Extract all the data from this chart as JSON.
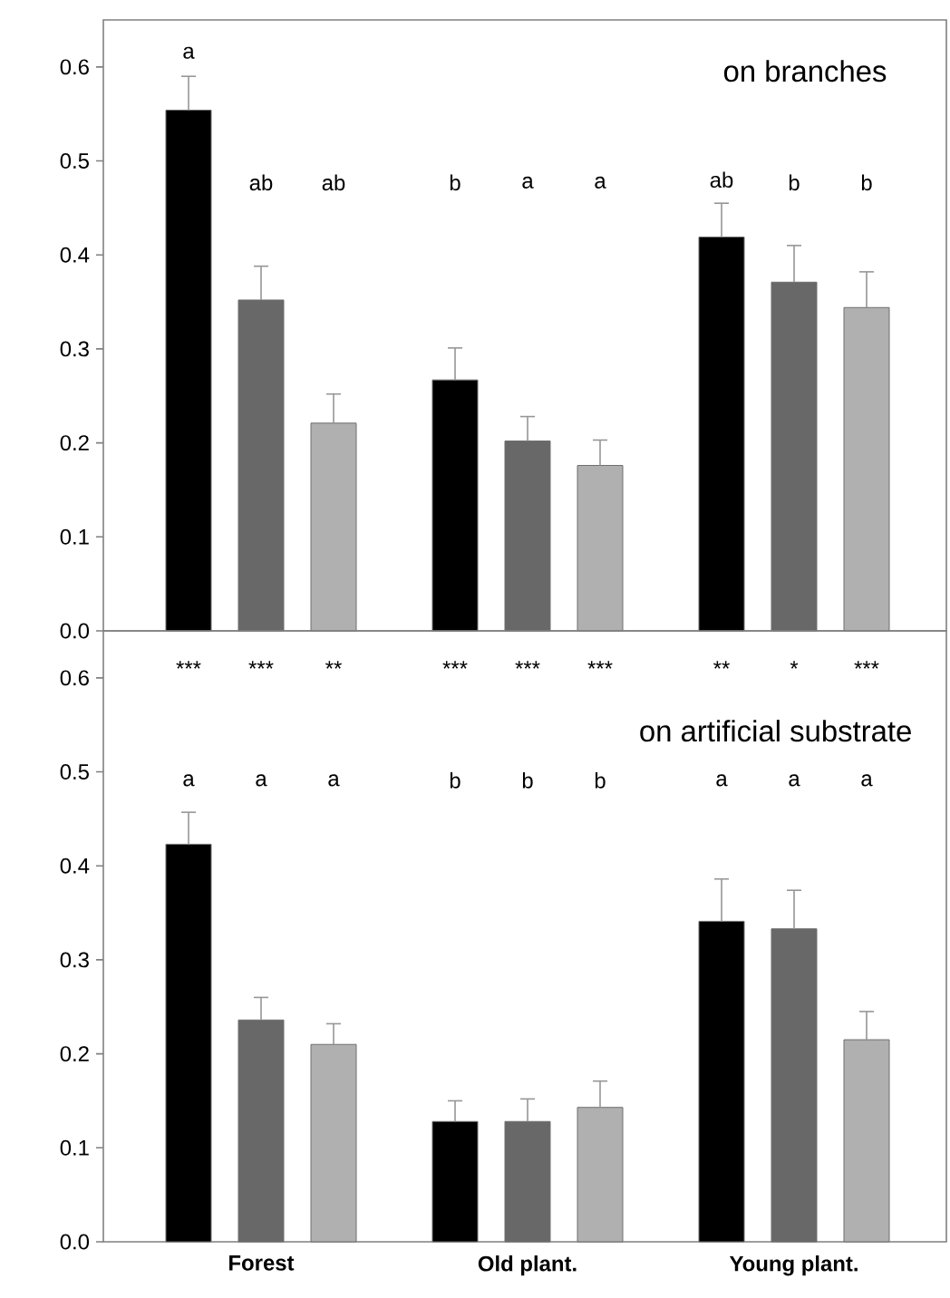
{
  "chart_data": [
    {
      "type": "bar",
      "title": "on branches",
      "categories": [
        null,
        null,
        null
      ],
      "series": [
        {
          "color": "#000000",
          "values": [
            0.554,
            0.267,
            0.419
          ],
          "errors": [
            [
              0.554,
              0.59
            ],
            [
              0.267,
              0.301
            ],
            [
              0.419,
              0.455
            ]
          ]
        },
        {
          "color": "#686868",
          "values": [
            0.352,
            0.202,
            0.371
          ],
          "errors": [
            [
              0.352,
              0.388
            ],
            [
              0.202,
              0.228
            ],
            [
              0.371,
              0.41
            ]
          ]
        },
        {
          "color": "#b0b0b0",
          "values": [
            0.221,
            0.176,
            0.344
          ],
          "errors": [
            [
              0.221,
              0.252
            ],
            [
              0.176,
              0.203
            ],
            [
              0.344,
              0.382
            ]
          ]
        }
      ],
      "ylim": [
        0,
        0.65
      ],
      "yticks": [
        {
          "value": 0,
          "label": "0.0"
        },
        0.1,
        0.2,
        0.3,
        0.4,
        0.5,
        0.6
      ],
      "annotations": [
        "a",
        "ab",
        "ab",
        "b",
        "a",
        "a",
        "ab",
        "b",
        "b"
      ]
    },
    {
      "type": "bar",
      "title": "on artificial substrate",
      "categories": [
        "Forest",
        "Old plant.",
        "Young plant."
      ],
      "series": [
        {
          "color": "#000000",
          "values": [
            0.423,
            0.128,
            0.341
          ],
          "errors": [
            [
              0.423,
              0.457
            ],
            [
              0.128,
              0.15
            ],
            [
              0.341,
              0.386
            ]
          ]
        },
        {
          "color": "#686868",
          "values": [
            0.236,
            0.128,
            0.333
          ],
          "errors": [
            [
              0.236,
              0.26
            ],
            [
              0.128,
              0.152
            ],
            [
              0.333,
              0.374
            ]
          ]
        },
        {
          "color": "#b0b0b0",
          "values": [
            0.21,
            0.143,
            0.215
          ],
          "errors": [
            [
              0.21,
              0.232
            ],
            [
              0.143,
              0.171
            ],
            [
              0.215,
              0.245
            ]
          ]
        }
      ],
      "ylim": [
        0,
        0.65
      ],
      "yticks": [
        {
          "value": 0,
          "label": "0.0"
        },
        0.1,
        0.2,
        0.3,
        0.4,
        0.5,
        0.6
      ],
      "annotations": [
        "***",
        "***",
        "**",
        "***",
        "***",
        "***",
        "**",
        "*",
        "***",
        "a",
        "a",
        "a",
        "b",
        "b",
        "b",
        "a",
        "a",
        "a"
      ]
    }
  ]
}
